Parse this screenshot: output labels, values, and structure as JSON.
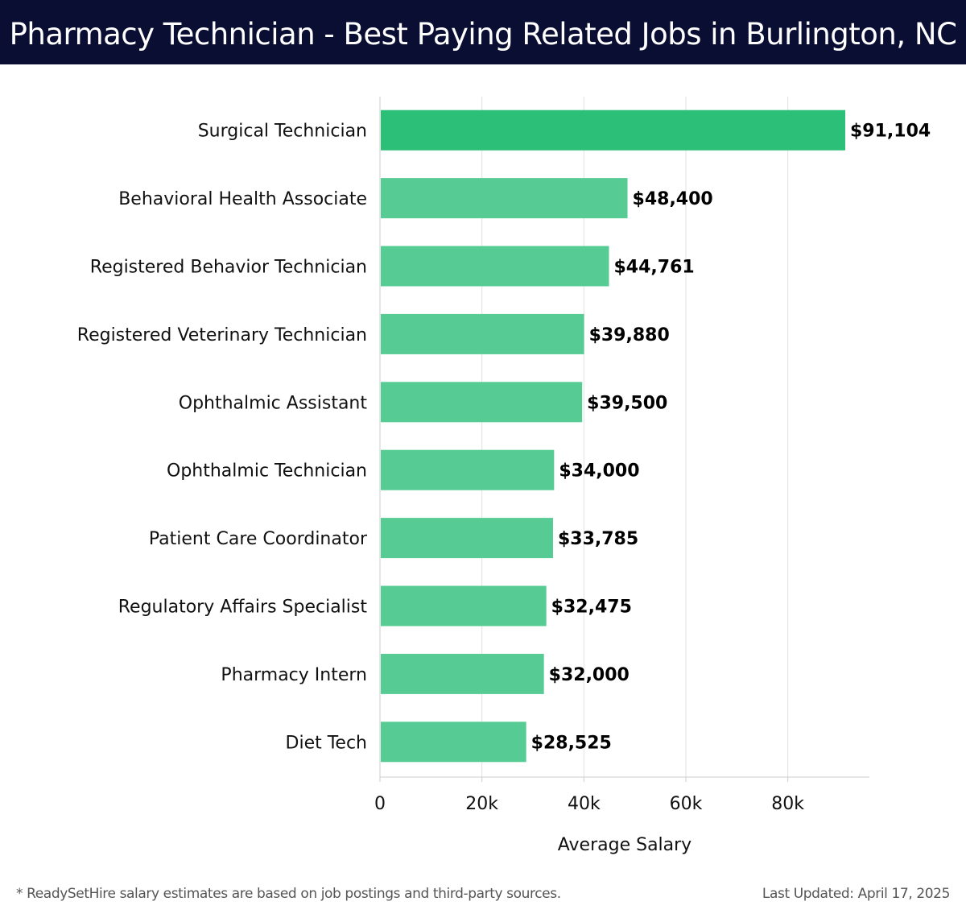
{
  "header": {
    "title": "Pharmacy Technician - Best Paying Related Jobs in Burlington, NC"
  },
  "chart_data": {
    "type": "bar",
    "orientation": "horizontal",
    "title": "Pharmacy Technician - Best Paying Related Jobs in Burlington, NC",
    "xlabel": "Average Salary",
    "ylabel": "",
    "categories": [
      "Surgical Technician",
      "Behavioral Health Associate",
      "Registered Behavior Technician",
      "Registered Veterinary Technician",
      "Ophthalmic Assistant",
      "Ophthalmic Technician",
      "Patient Care Coordinator",
      "Regulatory Affairs Specialist",
      "Pharmacy Intern",
      "Diet Tech"
    ],
    "values": [
      91104,
      48400,
      44761,
      39880,
      39500,
      34000,
      33785,
      32475,
      32000,
      28525
    ],
    "value_labels": [
      "$91,104",
      "$48,400",
      "$44,761",
      "$39,880",
      "$39,500",
      "$34,000",
      "$33,785",
      "$32,475",
      "$32,000",
      "$28,525"
    ],
    "xlim": [
      0,
      96000
    ],
    "xticks": [
      0,
      20000,
      40000,
      60000,
      80000
    ],
    "xtick_labels": [
      "0",
      "20k",
      "40k",
      "60k",
      "80k"
    ],
    "grid": true,
    "colors": {
      "top_bar": "#2bbf78",
      "bar": "#56cc94",
      "grid": "#e2e2e2",
      "axis": "#cccccc"
    }
  },
  "footer": {
    "note": "* ReadySetHire salary estimates are based on job postings and third-party sources.",
    "updated": "Last Updated: April 17, 2025"
  }
}
